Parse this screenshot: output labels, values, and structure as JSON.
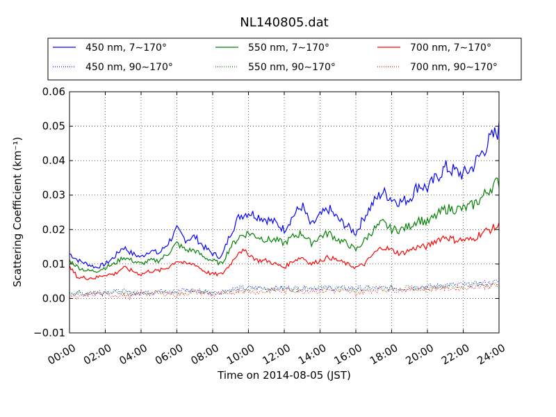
{
  "chart_data": {
    "type": "line",
    "title": "NL140805.dat",
    "xlabel": "Time on 2014-08-05 (JST)",
    "ylabel": "Scattering Coefficient (km⁻¹)",
    "xlim": [
      "00:00",
      "24:00"
    ],
    "ylim": [
      -0.01,
      0.06
    ],
    "x_ticks": [
      "00:00",
      "02:00",
      "04:00",
      "06:00",
      "08:00",
      "10:00",
      "12:00",
      "14:00",
      "16:00",
      "18:00",
      "20:00",
      "22:00",
      "24:00"
    ],
    "y_ticks": [
      "−0.01",
      "0.00",
      "0.01",
      "0.02",
      "0.03",
      "0.04",
      "0.05",
      "0.06"
    ],
    "grid": true,
    "legend_position": "top",
    "x_hours": [
      0,
      0.5,
      1,
      1.5,
      2,
      2.5,
      3,
      3.5,
      4,
      4.5,
      5,
      5.5,
      6,
      6.5,
      7,
      7.5,
      8,
      8.5,
      9,
      9.5,
      10,
      10.5,
      11,
      11.5,
      12,
      12.5,
      13,
      13.5,
      14,
      14.5,
      15,
      15.5,
      16,
      16.5,
      17,
      17.5,
      18,
      18.5,
      19,
      19.5,
      20,
      20.5,
      21,
      21.5,
      22,
      22.5,
      23,
      23.5,
      24
    ],
    "series": [
      {
        "name": "450 nm, 7∼170°",
        "color": "#0000ff",
        "style": "solid",
        "values": [
          0.013,
          0.011,
          0.01,
          0.009,
          0.01,
          0.012,
          0.015,
          0.013,
          0.012,
          0.014,
          0.013,
          0.016,
          0.02,
          0.017,
          0.018,
          0.015,
          0.013,
          0.012,
          0.019,
          0.024,
          0.025,
          0.024,
          0.023,
          0.022,
          0.02,
          0.024,
          0.027,
          0.021,
          0.024,
          0.026,
          0.023,
          0.021,
          0.019,
          0.024,
          0.028,
          0.031,
          0.029,
          0.028,
          0.029,
          0.033,
          0.032,
          0.035,
          0.038,
          0.037,
          0.036,
          0.038,
          0.042,
          0.046,
          0.049
        ]
      },
      {
        "name": "450 nm, 90∼170°",
        "color": "#0000ff",
        "style": "dotted",
        "values": [
          0.002,
          0.0015,
          0.0015,
          0.0015,
          0.002,
          0.002,
          0.002,
          0.0015,
          0.0015,
          0.002,
          0.002,
          0.0025,
          0.002,
          0.0025,
          0.002,
          0.002,
          0.0015,
          0.002,
          0.0025,
          0.003,
          0.003,
          0.003,
          0.003,
          0.003,
          0.003,
          0.003,
          0.003,
          0.003,
          0.003,
          0.003,
          0.003,
          0.003,
          0.003,
          0.003,
          0.003,
          0.003,
          0.003,
          0.003,
          0.003,
          0.0035,
          0.0035,
          0.0035,
          0.004,
          0.004,
          0.004,
          0.004,
          0.0045,
          0.0045,
          0.005
        ]
      },
      {
        "name": "550 nm, 7∼170°",
        "color": "#008000",
        "style": "solid",
        "values": [
          0.011,
          0.009,
          0.008,
          0.008,
          0.009,
          0.01,
          0.012,
          0.011,
          0.01,
          0.011,
          0.011,
          0.013,
          0.016,
          0.014,
          0.014,
          0.012,
          0.011,
          0.01,
          0.015,
          0.018,
          0.019,
          0.018,
          0.017,
          0.017,
          0.016,
          0.018,
          0.019,
          0.016,
          0.018,
          0.019,
          0.017,
          0.016,
          0.014,
          0.017,
          0.02,
          0.022,
          0.02,
          0.02,
          0.021,
          0.023,
          0.022,
          0.024,
          0.026,
          0.026,
          0.026,
          0.027,
          0.029,
          0.032,
          0.034
        ]
      },
      {
        "name": "550 nm, 90∼170°",
        "color": "#008000",
        "style": "dotted",
        "values": [
          0.0015,
          0.0015,
          0.0015,
          0.0015,
          0.0015,
          0.002,
          0.0015,
          0.0015,
          0.0015,
          0.0015,
          0.002,
          0.002,
          0.002,
          0.002,
          0.002,
          0.002,
          0.0015,
          0.002,
          0.002,
          0.0025,
          0.0025,
          0.003,
          0.0025,
          0.0025,
          0.003,
          0.0025,
          0.003,
          0.0025,
          0.003,
          0.003,
          0.003,
          0.0025,
          0.0025,
          0.003,
          0.003,
          0.003,
          0.003,
          0.003,
          0.003,
          0.003,
          0.003,
          0.0035,
          0.0035,
          0.0035,
          0.0035,
          0.004,
          0.004,
          0.004,
          0.004
        ]
      },
      {
        "name": "700 nm, 7∼170°",
        "color": "#ff0000",
        "style": "solid",
        "values": [
          0.009,
          0.006,
          0.006,
          0.006,
          0.007,
          0.007,
          0.009,
          0.008,
          0.007,
          0.008,
          0.008,
          0.009,
          0.011,
          0.01,
          0.01,
          0.008,
          0.007,
          0.007,
          0.01,
          0.014,
          0.013,
          0.011,
          0.011,
          0.01,
          0.009,
          0.011,
          0.012,
          0.01,
          0.011,
          0.012,
          0.011,
          0.01,
          0.009,
          0.01,
          0.013,
          0.015,
          0.014,
          0.013,
          0.014,
          0.015,
          0.015,
          0.017,
          0.018,
          0.017,
          0.017,
          0.017,
          0.019,
          0.02,
          0.021
        ]
      },
      {
        "name": "700 nm, 90∼170°",
        "color": "#ff0000",
        "style": "dotted",
        "values": [
          0.001,
          0.0,
          0.001,
          0.0015,
          0.001,
          0.001,
          0.001,
          0.0005,
          0.0015,
          0.0015,
          0.0015,
          0.0015,
          0.001,
          0.0015,
          0.002,
          0.0015,
          0.001,
          0.0015,
          0.0015,
          0.0025,
          0.002,
          0.002,
          0.002,
          0.0025,
          0.002,
          0.0025,
          0.002,
          0.0025,
          0.002,
          0.0025,
          0.002,
          0.002,
          0.0015,
          0.002,
          0.0025,
          0.0025,
          0.0025,
          0.0025,
          0.0025,
          0.003,
          0.0025,
          0.003,
          0.003,
          0.003,
          0.003,
          0.0035,
          0.0035,
          0.0035,
          0.004
        ]
      }
    ]
  }
}
